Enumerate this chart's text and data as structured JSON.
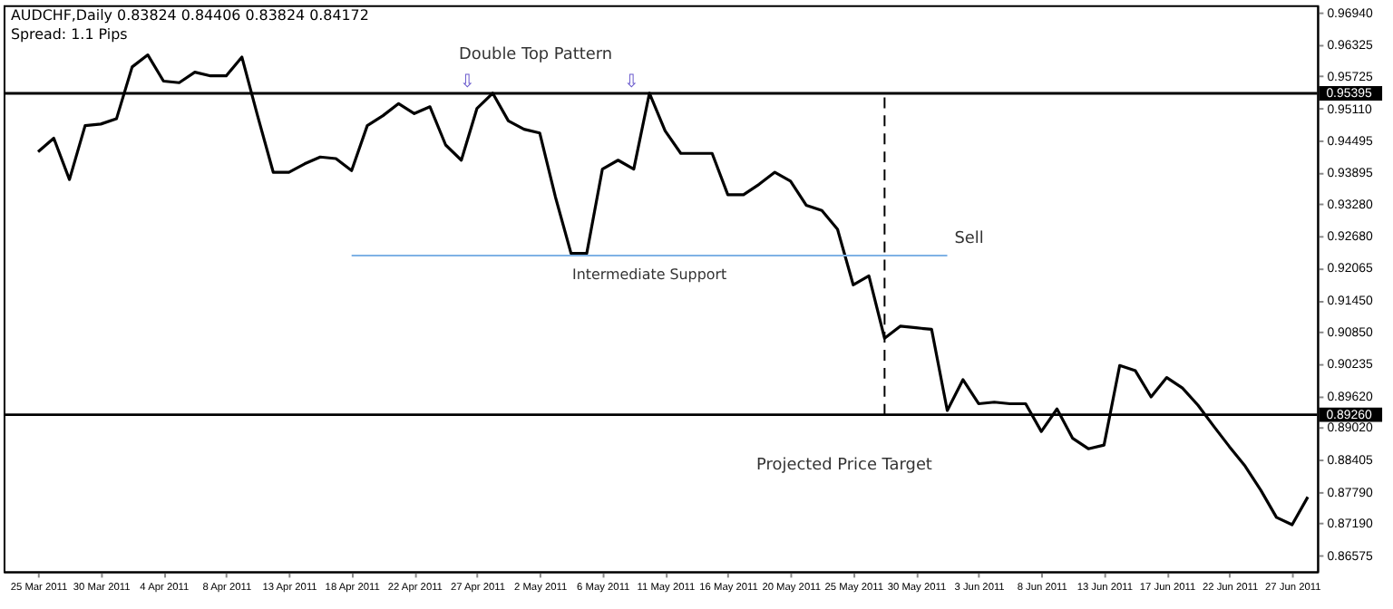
{
  "chart_data": {
    "type": "line",
    "title": "AUDCHF,Daily  0.83824 0.84406 0.83824 0.84172",
    "subtitle": "Spread: 1.1 Pips",
    "categories": [
      "25 Mar 2011",
      null,
      null,
      null,
      "30 Mar 2011",
      null,
      null,
      null,
      "4 Apr 2011",
      null,
      null,
      null,
      "8 Apr 2011",
      null,
      null,
      null,
      "13 Apr 2011",
      null,
      null,
      null,
      "18 Apr 2011",
      null,
      null,
      null,
      "22 Apr 2011",
      null,
      null,
      null,
      "27 Apr 2011",
      null,
      null,
      null,
      "2 May 2011",
      null,
      null,
      null,
      "6 May 2011",
      null,
      null,
      null,
      "11 May 2011",
      null,
      null,
      null,
      "16 May 2011",
      null,
      null,
      null,
      "20 May 2011",
      null,
      null,
      null,
      "25 May 2011",
      null,
      null,
      null,
      "30 May 2011",
      null,
      null,
      null,
      "3 Jun 2011",
      null,
      null,
      null,
      "8 Jun 2011",
      null,
      null,
      null,
      "13 Jun 2011",
      null,
      null,
      null,
      "17 Jun 2011",
      null,
      null,
      null,
      "22 Jun 2011",
      null,
      null,
      null,
      "27 Jun 2011",
      null
    ],
    "series": [
      {
        "color": "#000000",
        "values": [
          0.9428,
          0.9454,
          0.9375,
          0.9478,
          0.9481,
          0.9491,
          0.959,
          0.9613,
          0.9563,
          0.956,
          0.958,
          0.9573,
          0.9573,
          0.9609,
          0.9497,
          0.9389,
          0.9389,
          0.9405,
          0.9418,
          0.9415,
          0.9392,
          0.9478,
          0.9497,
          0.952,
          0.9501,
          0.9514,
          0.9441,
          0.9412,
          0.9511,
          0.954,
          0.9487,
          0.9471,
          0.9464,
          0.9342,
          0.9234,
          0.9234,
          0.9395,
          0.9412,
          0.9395,
          0.954,
          0.9468,
          0.9425,
          0.9425,
          0.9425,
          0.9346,
          0.9346,
          0.9366,
          0.9389,
          0.9372,
          0.9326,
          0.9316,
          0.928,
          0.9174,
          0.9191,
          0.9072,
          0.9095,
          0.9092,
          0.9089,
          0.8934,
          0.8993,
          0.8947,
          0.895,
          0.8947,
          0.8947,
          0.8894,
          0.8937,
          0.8881,
          0.8861,
          0.8868,
          0.902,
          0.901,
          0.896,
          0.8997,
          0.8977,
          0.8944,
          0.8904,
          0.8865,
          0.8828,
          0.8782,
          0.873,
          0.8716,
          0.8769
        ]
      },
      {
        "name": "Intermediate Support",
        "color": "#7fb2e5",
        "values": [
          null,
          null,
          null,
          null,
          null,
          null,
          null,
          null,
          null,
          null,
          null,
          null,
          null,
          null,
          null,
          null,
          null,
          null,
          null,
          null,
          0.923,
          0.923,
          0.923,
          0.923,
          0.923,
          0.923,
          0.923,
          0.923,
          0.923,
          0.923,
          0.923,
          0.923,
          0.923,
          0.923,
          0.923,
          0.923,
          0.923,
          0.923,
          0.923,
          0.923,
          0.923,
          0.923,
          0.923,
          0.923,
          0.923,
          0.923,
          0.923,
          0.923,
          0.923,
          0.923,
          0.923,
          0.923,
          0.923,
          0.923,
          0.923,
          0.923,
          0.923,
          0.923,
          0.923,
          null,
          null,
          null,
          null,
          null,
          null,
          null,
          null,
          null,
          null,
          null,
          null,
          null,
          null,
          null,
          null,
          null,
          null,
          null,
          null,
          null,
          null,
          null
        ]
      }
    ],
    "ylim": [
      0.8627,
      0.9708
    ],
    "yticks": [
      0.86575,
      {
        "value": 0.8719,
        "label": "0.87190"
      },
      {
        "value": 0.8779,
        "label": "0.87790"
      },
      0.88405,
      {
        "value": 0.8902,
        "label": "0.89020"
      },
      {
        "value": 0.8962,
        "label": "0.89620"
      },
      0.90235,
      {
        "value": 0.9085,
        "label": "0.90850"
      },
      {
        "value": 0.9145,
        "label": "0.91450"
      },
      0.92065,
      {
        "value": 0.9268,
        "label": "0.92680"
      },
      {
        "value": 0.9328,
        "label": "0.93280"
      },
      0.93895,
      0.94495,
      {
        "value": 0.9511,
        "label": "0.95110"
      },
      0.95725,
      0.96325,
      {
        "value": 0.9694,
        "label": "0.96940"
      }
    ],
    "ref_lines": [
      {
        "axis": "y",
        "value": 0.95395,
        "label": "0.95395",
        "color": "#000000"
      },
      {
        "axis": "y",
        "value": 0.8926,
        "label": "0.89260",
        "color": "#000000"
      }
    ],
    "annotations": [
      "Double Top Pattern",
      "⇩",
      "⇩",
      "Sell",
      "Projected Price Target"
    ],
    "grid": false
  }
}
